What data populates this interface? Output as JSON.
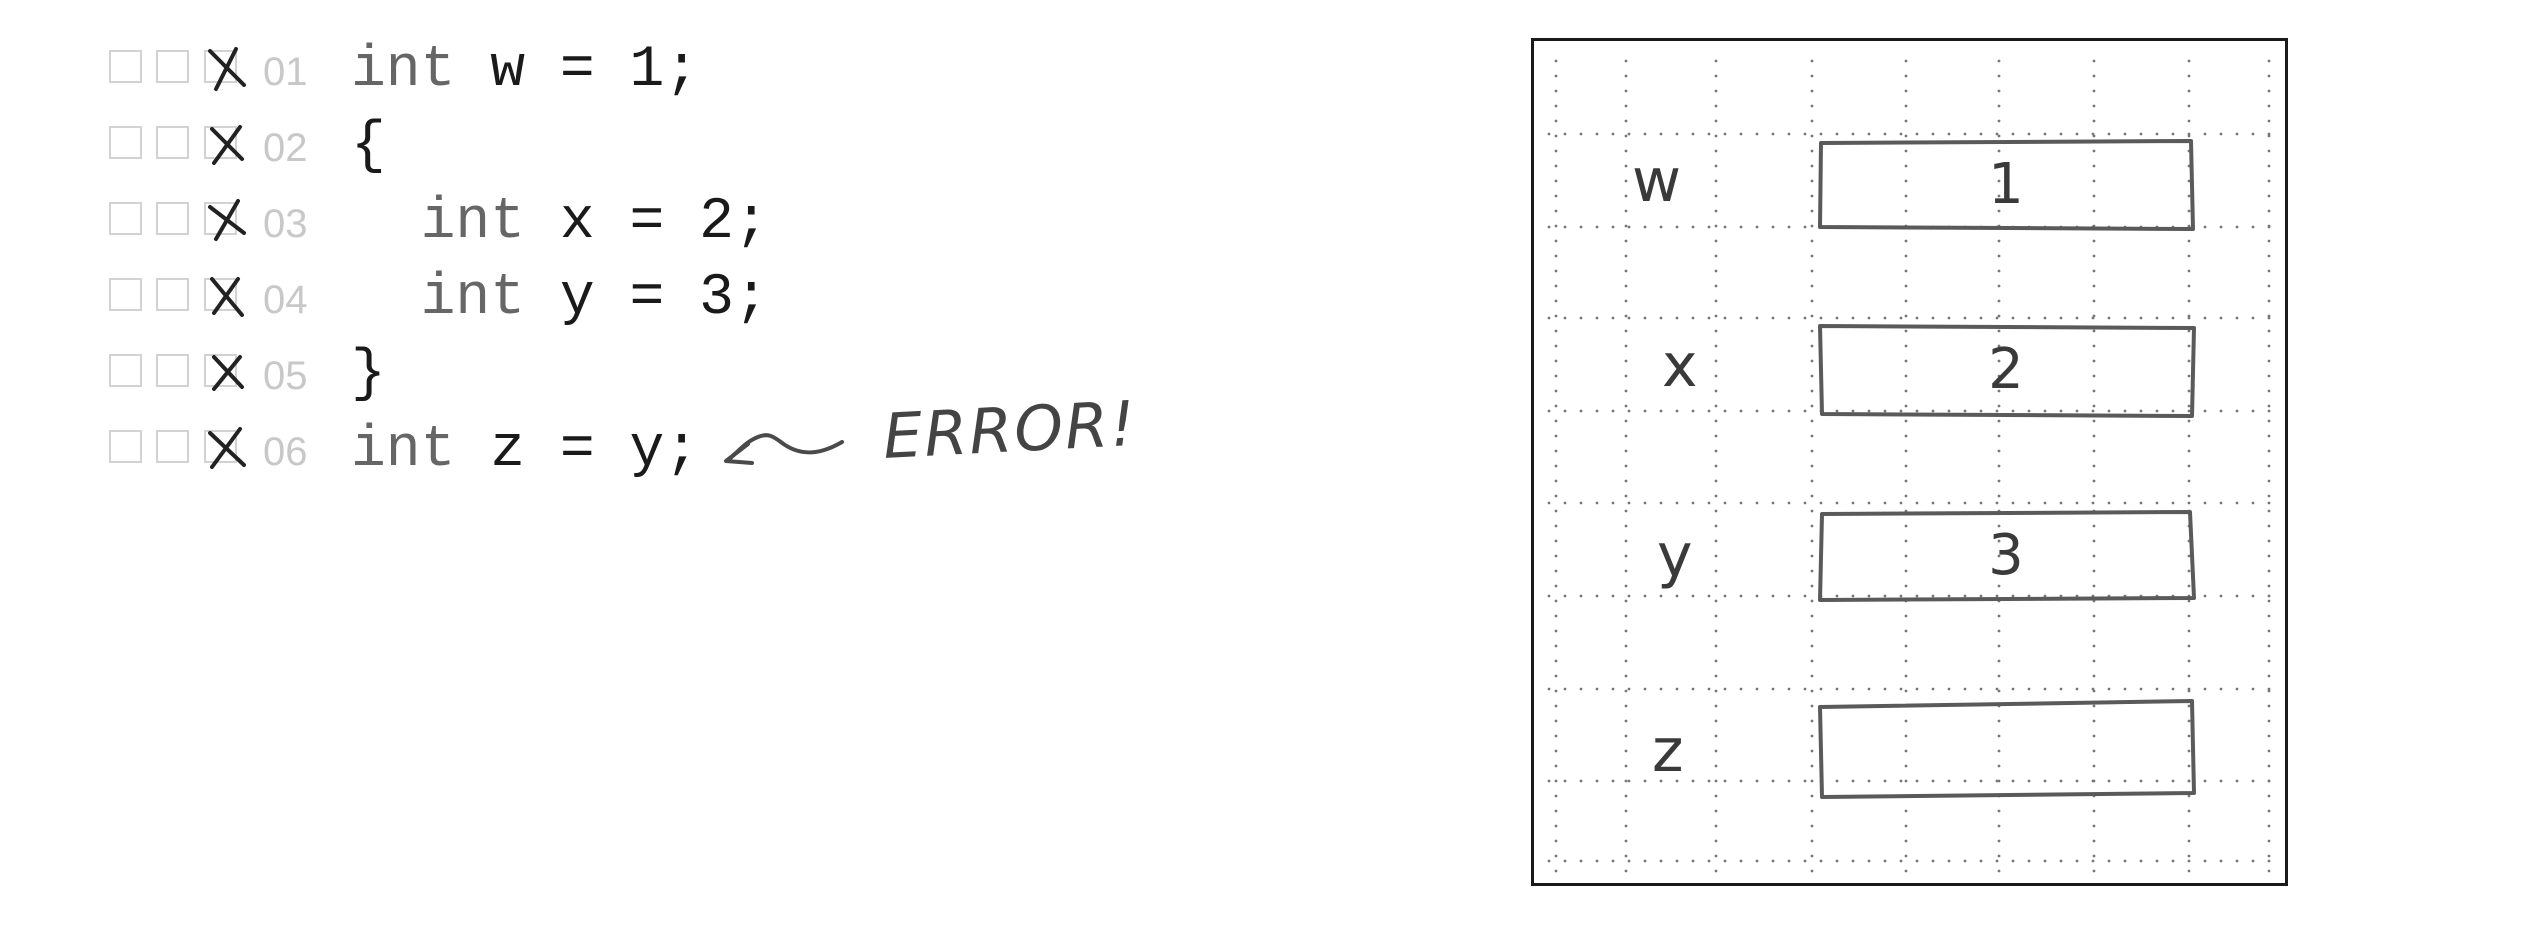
{
  "code_lines": [
    {
      "num": "01",
      "indent": "",
      "keyword": "int",
      "rest": " w = 1;"
    },
    {
      "num": "02",
      "indent": "",
      "keyword": "",
      "rest": "{"
    },
    {
      "num": "03",
      "indent": "  ",
      "keyword": "int",
      "rest": " x = 2;"
    },
    {
      "num": "04",
      "indent": "  ",
      "keyword": "int",
      "rest": " y = 3;"
    },
    {
      "num": "05",
      "indent": "",
      "keyword": "",
      "rest": "}"
    },
    {
      "num": "06",
      "indent": "",
      "keyword": "int",
      "rest": " z = y;"
    }
  ],
  "annotation": {
    "text": "ERROR!"
  },
  "memory": {
    "variables": [
      {
        "name": "w",
        "value": "1"
      },
      {
        "name": "x",
        "value": "2"
      },
      {
        "name": "y",
        "value": "3"
      },
      {
        "name": "z",
        "value": ""
      }
    ]
  },
  "colors": {
    "ink": "#1a1a1a",
    "pencil": "#5a5a5a",
    "faint": "#c8c8c8"
  }
}
